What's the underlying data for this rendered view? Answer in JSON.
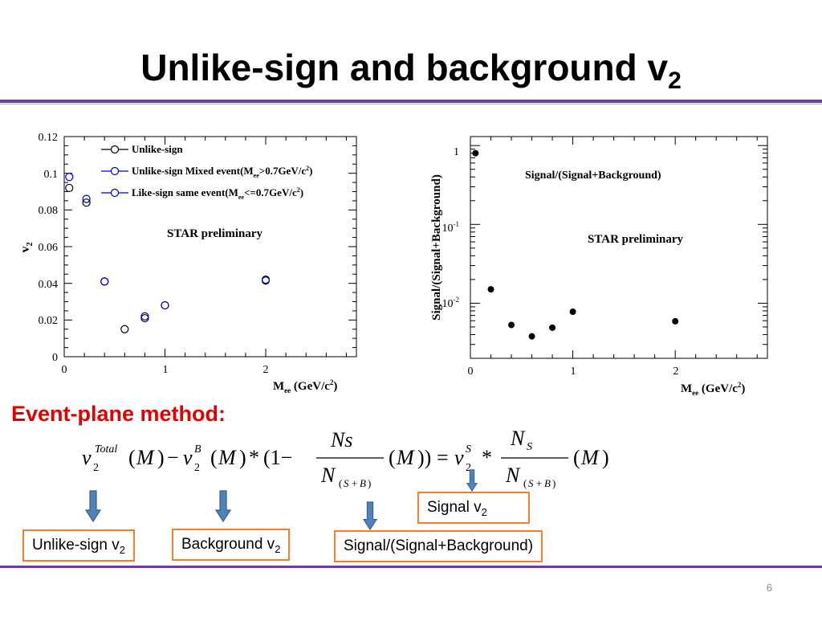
{
  "slide": {
    "title": "Unlike-sign and background v",
    "title_sub": "2",
    "page_number": "6",
    "method_label": "Event-plane method:"
  },
  "boxes": {
    "unlike": {
      "text": "Unlike-sign v",
      "sub": "2"
    },
    "background": {
      "text": "Background v",
      "sub": "2"
    },
    "ratio": {
      "text": "Signal/(Signal+Background)"
    },
    "signal": {
      "text": "Signal v",
      "sub": "2"
    }
  },
  "chart_data": [
    {
      "type": "scatter",
      "preliminary": "STAR preliminary",
      "xlim": [
        0,
        2.9
      ],
      "ylim": [
        0,
        0.12
      ],
      "xticks": [
        "0",
        "1",
        "2"
      ],
      "yticks": [
        "0",
        "0.02",
        "0.04",
        "0.06",
        "0.08",
        "0.1",
        "0.12"
      ],
      "series": [
        {
          "name": "Unlike-sign",
          "color": "#000000",
          "x": [
            0.05,
            0.22,
            0.4,
            0.6,
            0.8,
            1.0,
            2.0
          ],
          "y": [
            0.092,
            0.084,
            0.041,
            0.015,
            0.021,
            0.028,
            0.042
          ]
        },
        {
          "name": "Unlike-sign Mixed event",
          "color": "#0000cc",
          "x": [
            0.8,
            1.0,
            2.0
          ],
          "y": [
            0.022,
            0.028,
            0.0415
          ]
        },
        {
          "name": "Like-sign same event",
          "color": "#0000cc",
          "x": [
            0.05,
            0.22,
            0.4
          ],
          "y": [
            0.098,
            0.086,
            0.041
          ]
        }
      ]
    },
    {
      "type": "scatter",
      "title": "Signal/(Signal+Background)",
      "preliminary": "STAR preliminary",
      "yscale": "log",
      "xlim": [
        0,
        2.9
      ],
      "ylim": [
        0.002,
        1.3
      ],
      "xticks": [
        "0",
        "1",
        "2"
      ],
      "series": [
        {
          "name": "Signal/(Signal+Background)",
          "color": "#000000",
          "x": [
            0.05,
            0.2,
            0.4,
            0.6,
            0.8,
            1.0,
            2.0
          ],
          "y": [
            0.8,
            0.015,
            0.0053,
            0.0038,
            0.0049,
            0.0078,
            0.0059
          ]
        }
      ]
    }
  ]
}
